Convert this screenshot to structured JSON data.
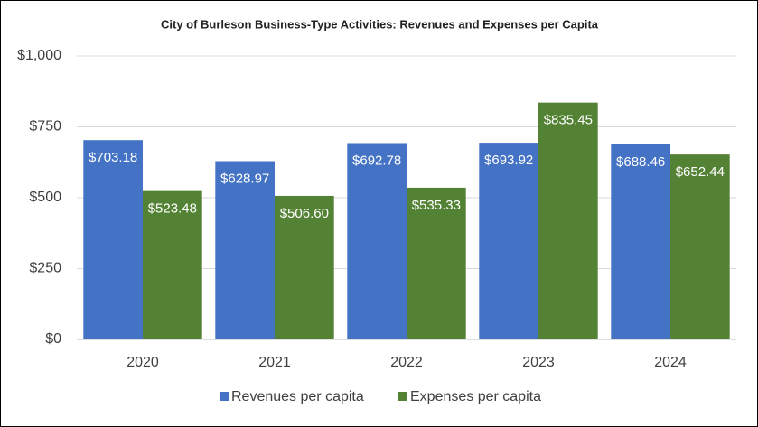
{
  "chart_data": {
    "type": "bar",
    "title": "City of Burleson Business-Type Activities: Revenues and Expenses per Capita",
    "categories": [
      "2020",
      "2021",
      "2022",
      "2023",
      "2024"
    ],
    "series": [
      {
        "name": "Revenues per capita",
        "color": "#4472c4",
        "values": [
          703.18,
          628.97,
          692.78,
          693.92,
          688.46
        ],
        "value_labels": [
          "$703.18",
          "$628.97",
          "$692.78",
          "$693.92",
          "$688.46"
        ]
      },
      {
        "name": "Expenses per capita",
        "color": "#548235",
        "values": [
          523.48,
          506.6,
          535.33,
          835.45,
          652.44
        ],
        "value_labels": [
          "$523.48",
          "$506.60",
          "$535.33",
          "$835.45",
          "$652.44"
        ]
      }
    ],
    "ylim": [
      0,
      1000
    ],
    "yticks": [
      {
        "value": 0,
        "label": "$0"
      },
      {
        "value": 250,
        "label": "$250"
      },
      {
        "value": 500,
        "label": "$500"
      },
      {
        "value": 750,
        "label": "$750"
      },
      {
        "value": 1000,
        "label": "$1,000"
      }
    ],
    "grid": true,
    "legend": "bottom"
  }
}
